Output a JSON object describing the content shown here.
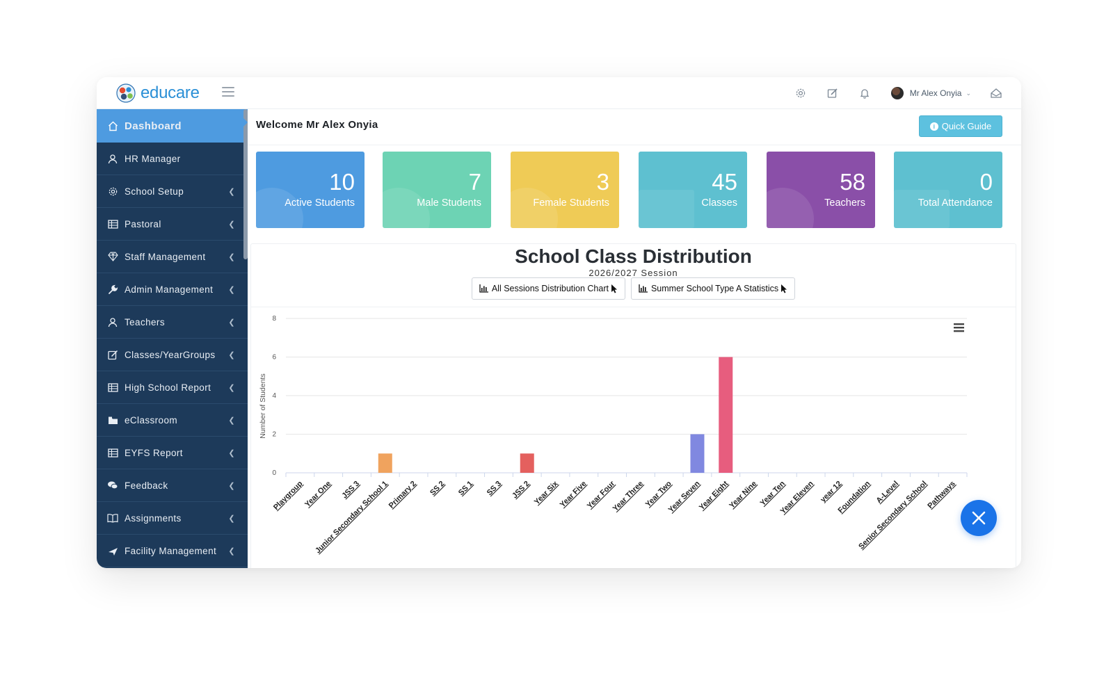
{
  "app": {
    "logo_text": "educare"
  },
  "header": {
    "user_name": "Mr Alex Onyia",
    "icons": [
      "gear-icon",
      "edit-icon",
      "bell-icon",
      "inbox-icon"
    ]
  },
  "sidebar": {
    "items": [
      {
        "label": "Dashboard",
        "icon": "home-icon",
        "has_chevron": false,
        "active": true
      },
      {
        "label": "HR Manager",
        "icon": "user-icon",
        "has_chevron": false
      },
      {
        "label": "School Setup",
        "icon": "gear-icon",
        "has_chevron": true
      },
      {
        "label": "Pastoral",
        "icon": "table-icon",
        "has_chevron": true
      },
      {
        "label": "Staff Management",
        "icon": "diamond-icon",
        "has_chevron": true
      },
      {
        "label": "Admin Management",
        "icon": "wrench-icon",
        "has_chevron": true
      },
      {
        "label": "Teachers",
        "icon": "user-icon",
        "has_chevron": true
      },
      {
        "label": "Classes/YearGroups",
        "icon": "edit-icon",
        "has_chevron": true
      },
      {
        "label": "High School Report",
        "icon": "table-icon",
        "has_chevron": true
      },
      {
        "label": "eClassroom",
        "icon": "folder-icon",
        "has_chevron": true
      },
      {
        "label": "EYFS Report",
        "icon": "table-icon",
        "has_chevron": true
      },
      {
        "label": "Feedback",
        "icon": "comments-icon",
        "has_chevron": true
      },
      {
        "label": "Assignments",
        "icon": "book-icon",
        "has_chevron": true
      },
      {
        "label": "Facility Management",
        "icon": "plane-icon",
        "has_chevron": true
      }
    ]
  },
  "main": {
    "welcome": "Welcome Mr Alex Onyia",
    "quick_guide_label": "Quick Guide",
    "cards": [
      {
        "value": "10",
        "label": "Active Students",
        "color": "#4e9be0"
      },
      {
        "value": "7",
        "label": "Male Students",
        "color": "#6dd3b4"
      },
      {
        "value": "3",
        "label": "Female Students",
        "color": "#efcb56"
      },
      {
        "value": "45",
        "label": "Classes",
        "color": "#5ec0d0"
      },
      {
        "value": "58",
        "label": "Teachers",
        "color": "#8a4fa8"
      },
      {
        "value": "0",
        "label": "Total Attendance",
        "color": "#5ec0d0"
      }
    ],
    "chart_buttons": [
      {
        "label": "All Sessions Distribution Chart"
      },
      {
        "label": "Summer School Type A Statistics"
      }
    ]
  },
  "chart_data": {
    "type": "bar",
    "title": "School Class Distribution",
    "subtitle": "2026/2027 Session",
    "ylabel": "Number of Students",
    "ylim": [
      0,
      8
    ],
    "yticks": [
      0,
      2,
      4,
      6,
      8
    ],
    "grid": true,
    "categories": [
      "Playgroup",
      "Year One",
      "JSS 3",
      "Junior Secondary School 1",
      "Primary 2",
      "SS 2",
      "SS 1",
      "SS 3",
      "JSS 2",
      "Year Six",
      "Year Five",
      "Year Four",
      "Year Three",
      "Year Two",
      "Year Seven",
      "Year Eight",
      "Year Nine",
      "Year Ten",
      "Year Eleven",
      "year 12",
      "Foundation",
      "A-Level",
      "Senior Secondary School",
      "Pathways"
    ],
    "values": [
      0,
      0,
      0,
      1,
      0,
      0,
      0,
      0,
      1,
      0,
      0,
      0,
      0,
      0,
      2,
      6,
      0,
      0,
      0,
      0,
      0,
      0,
      0,
      0
    ],
    "colors": {
      "3": "#f0a35e",
      "8": "#e4605e",
      "14": "#8088e0",
      "15": "#e75d7e"
    }
  }
}
